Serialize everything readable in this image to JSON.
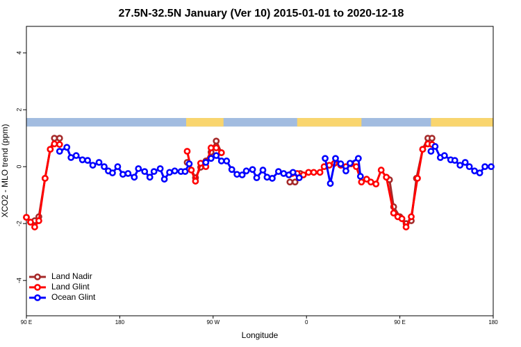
{
  "chart_data": {
    "type": "line",
    "title": "27.5N-32.5N January (Ver 10)   2015-01-01 to 2020-12-18",
    "xlabel": "Longitude",
    "ylabel": "XCO2 - MLO trend (ppm)",
    "xlim": [
      90,
      540
    ],
    "ylim": [
      -5.24,
      4.93
    ],
    "xticks": [
      {
        "value": 90,
        "label": "90 E"
      },
      180,
      {
        "value": 270,
        "label": "90 W"
      },
      {
        "value": 360,
        "label": "0"
      },
      {
        "value": 450,
        "label": "90 E"
      },
      {
        "value": 540,
        "label": "180"
      }
    ],
    "yticks": [
      -4,
      -2,
      0,
      2,
      4
    ],
    "legend": "bottom-left",
    "surface_band": {
      "ylim": [
        1.41,
        1.71
      ],
      "land_color": "#f9d56e",
      "ocean_color": "#a2bce0",
      "land": [
        [
          244,
          280
        ],
        [
          351,
          413
        ],
        [
          480,
          540
        ]
      ]
    },
    "series": [
      {
        "name": "Land Nadir",
        "color": "#a52a2a",
        "x": [
          90,
          94,
          98,
          102,
          108,
          113,
          117,
          122,
          180,
          245,
          253,
          258,
          263,
          268,
          273,
          278,
          320,
          344,
          349,
          354,
          400,
          440,
          444,
          450,
          456,
          461,
          466,
          472,
          477,
          481
        ],
        "values": [
          -1.78,
          -1.95,
          -1.9,
          -1.76,
          -0.41,
          0.61,
          1.0,
          1.0,
          null,
          0.15,
          -0.39,
          -0.02,
          0.2,
          0.51,
          0.9,
          0.49,
          null,
          -0.54,
          -0.54,
          -0.24,
          null,
          -0.46,
          -1.41,
          -1.76,
          -2.0,
          -1.9,
          -0.41,
          0.61,
          1.0,
          1.0
        ]
      },
      {
        "name": "Land Glint",
        "color": "#ff0000",
        "x": [
          90,
          94,
          98,
          102,
          108,
          113,
          117,
          122,
          180,
          245,
          249,
          253,
          258,
          263,
          268,
          273,
          278,
          320,
          346,
          351,
          357,
          362,
          367,
          373,
          377,
          382,
          387,
          393,
          398,
          403,
          408,
          413,
          418,
          422,
          427,
          432,
          437,
          444,
          448,
          452,
          456,
          461,
          467,
          472,
          477,
          481
        ],
        "values": [
          -1.78,
          -1.95,
          -2.12,
          -1.9,
          -0.41,
          0.61,
          0.8,
          0.78,
          null,
          0.54,
          -0.12,
          -0.51,
          0.12,
          0,
          0.66,
          0.66,
          0.49,
          null,
          -0.24,
          -0.24,
          -0.29,
          -0.2,
          -0.2,
          -0.2,
          0,
          0.05,
          0.12,
          0.05,
          0,
          0.1,
          0,
          -0.54,
          -0.44,
          -0.54,
          -0.61,
          -0.12,
          -0.37,
          -1.63,
          -1.76,
          -1.83,
          -2.12,
          -1.76,
          -0.41,
          0.61,
          0.8,
          0.78
        ]
      },
      {
        "name": "Ocean Glint",
        "color": "#0000ff",
        "x": [
          122,
          129,
          133,
          138,
          144,
          149,
          154,
          160,
          165,
          169,
          173,
          178,
          183,
          188,
          194,
          198,
          204,
          209,
          213,
          219,
          223,
          228,
          233,
          239,
          243,
          247,
          255,
          263,
          268,
          273,
          278,
          283,
          288,
          293,
          298,
          302,
          308,
          312,
          318,
          322,
          327,
          333,
          338,
          343,
          347,
          353,
          365,
          378,
          383,
          388,
          393,
          398,
          402,
          410,
          412,
          445,
          480,
          484,
          489,
          493,
          499,
          503,
          508,
          513,
          517,
          522,
          527,
          532,
          538
        ],
        "values": [
          0.54,
          0.68,
          0.32,
          0.39,
          0.24,
          0.22,
          0.05,
          0.15,
          0,
          -0.15,
          -0.22,
          0,
          -0.27,
          -0.24,
          -0.37,
          -0.07,
          -0.17,
          -0.37,
          -0.17,
          -0.07,
          -0.44,
          -0.2,
          -0.15,
          -0.17,
          -0.17,
          0.1,
          null,
          0.15,
          0.29,
          0.39,
          0.2,
          0.2,
          -0.1,
          -0.27,
          -0.29,
          -0.15,
          -0.1,
          -0.39,
          -0.12,
          -0.37,
          -0.41,
          -0.17,
          -0.24,
          -0.29,
          -0.2,
          -0.39,
          null,
          0.29,
          -0.59,
          0.29,
          0.1,
          -0.15,
          0.12,
          0.29,
          -0.34,
          null,
          0.54,
          0.71,
          0.32,
          0.39,
          0.24,
          0.22,
          0.05,
          0.15,
          0,
          -0.15,
          -0.22,
          0,
          0
        ]
      }
    ]
  }
}
